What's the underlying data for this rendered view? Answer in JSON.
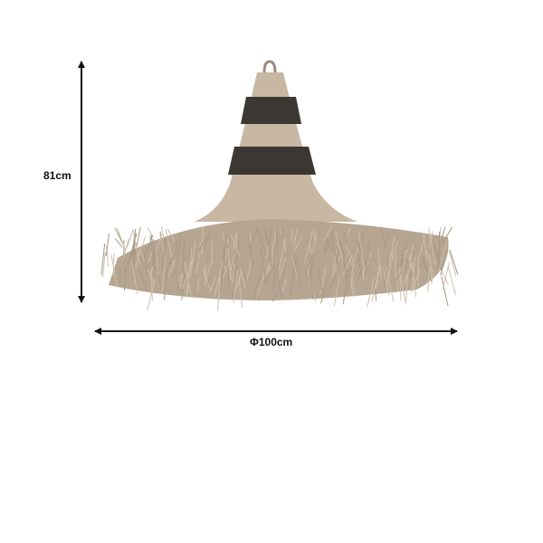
{
  "dimensions": {
    "height_label": "81cm",
    "diameter_label": "Φ100cm"
  },
  "product": {
    "icon": "raffia-pendant-lamp-image",
    "colors": {
      "raffia": "#c7b7a3",
      "stripe": "#3b3733",
      "fringe": "#b5a591",
      "arrow": "#111111"
    }
  }
}
